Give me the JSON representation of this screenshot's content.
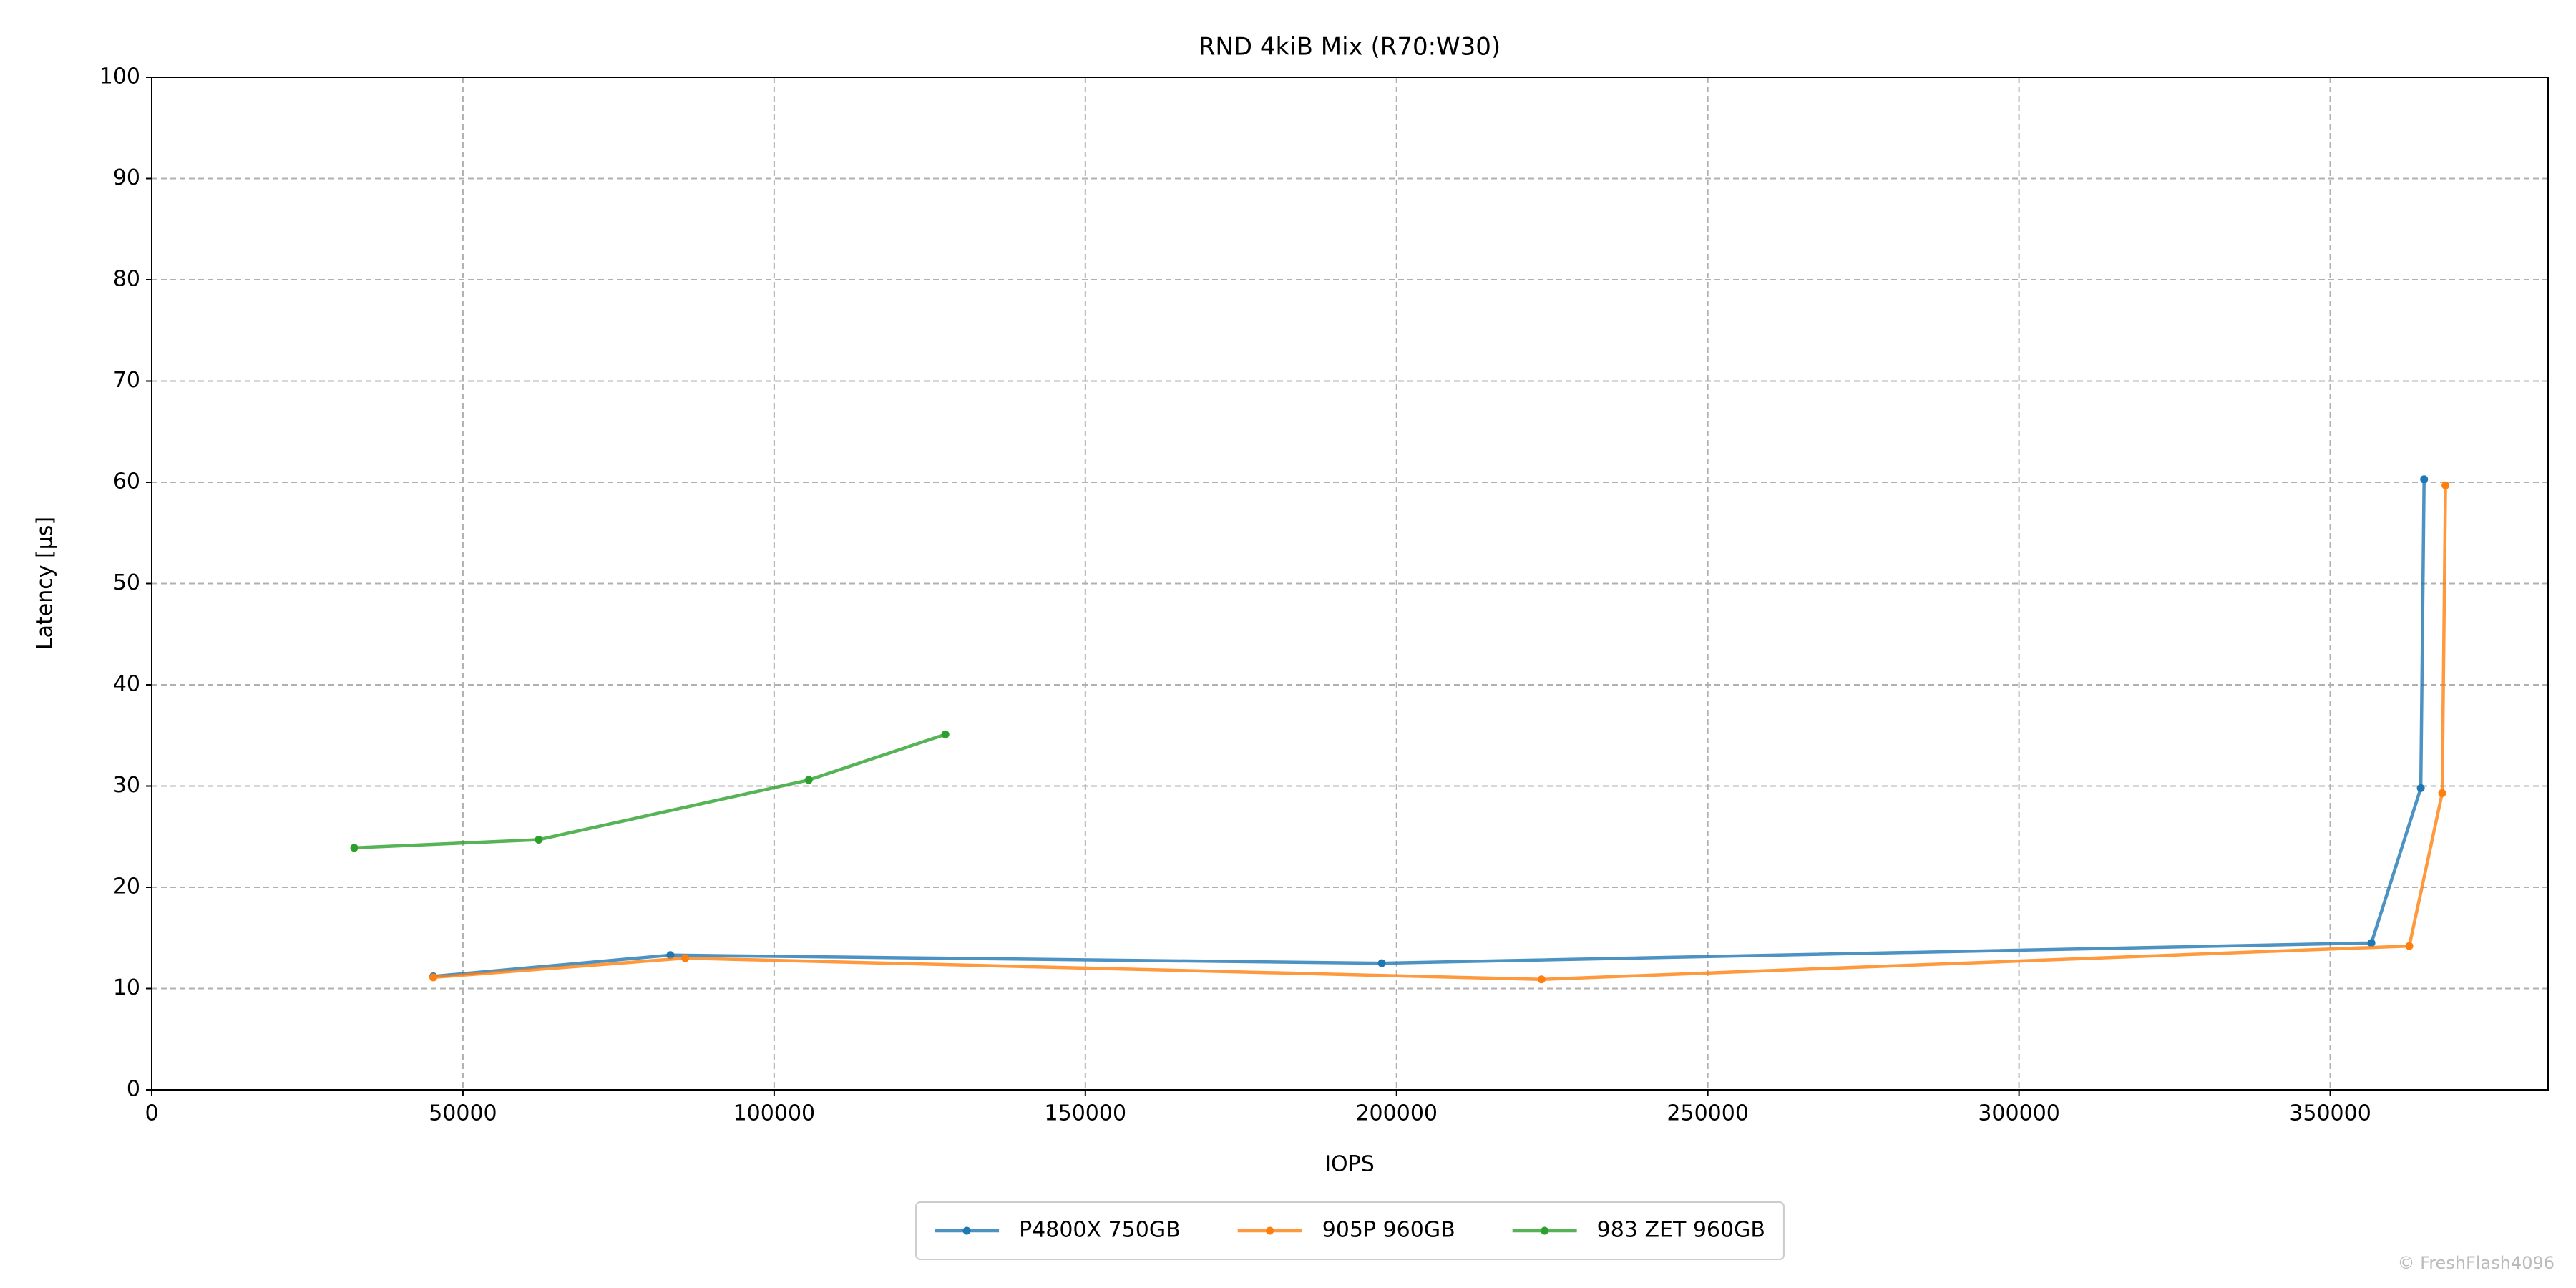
{
  "chart_data": {
    "type": "line",
    "title": "RND 4kiB Mix (R70:W30)",
    "xlabel": "IOPS",
    "ylabel": "Latency [µs]",
    "watermark": "© FreshFlash4096",
    "xlim": [
      0,
      385000
    ],
    "ylim": [
      0,
      100
    ],
    "xticks": [
      0,
      50000,
      100000,
      150000,
      200000,
      250000,
      300000,
      350000
    ],
    "yticks": [
      0,
      10,
      20,
      30,
      40,
      50,
      60,
      70,
      80,
      90,
      100
    ],
    "grid": true,
    "legend": "below",
    "series": [
      {
        "name": "P4800X 750GB",
        "color": "#1f77b4",
        "x": [
          45238,
          83333,
          197619,
          356614,
          364550,
          365079
        ],
        "values": [
          11.2,
          13.3,
          12.5,
          14.5,
          29.8,
          60.3
        ]
      },
      {
        "name": "905P 960GB",
        "color": "#ff7f0e",
        "x": [
          45238,
          85714,
          223280,
          362700,
          367989,
          368519
        ],
        "values": [
          11.1,
          13.0,
          10.9,
          14.2,
          29.3,
          59.7
        ]
      },
      {
        "name": "983 ZET 960GB",
        "color": "#2ca02c",
        "x": [
          32540,
          62169,
          105556,
          127513
        ],
        "values": [
          23.9,
          24.7,
          30.6,
          35.1
        ]
      }
    ]
  }
}
